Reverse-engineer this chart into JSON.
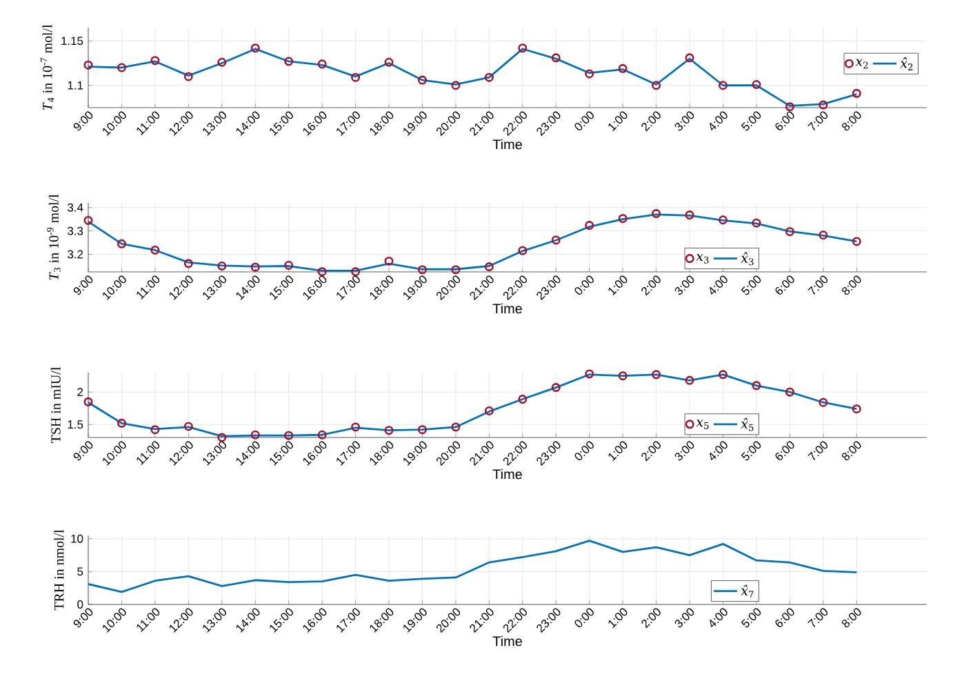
{
  "chart_data": [
    {
      "type": "line",
      "xlabel": "Time",
      "ylabel": "*T*$_{4}$ in 10$^{-7}$ mol/l",
      "categories": [
        "9:00",
        "10:00",
        "11:00",
        "12:00",
        "13:00",
        "14:00",
        "15:00",
        "16:00",
        "17:00",
        "18:00",
        "19:00",
        "20:00",
        "21:00",
        "22:00",
        "23:00",
        "0:00",
        "1:00",
        "2:00",
        "3:00",
        "4:00",
        "5:00",
        "6:00",
        "7:00",
        "8:00"
      ],
      "ylim": [
        1.075,
        1.165
      ],
      "yticks": [
        1.1,
        1.15
      ],
      "grid": true,
      "legend": "right",
      "series": [
        {
          "name": "*x*$_{2}$",
          "type": "scatter",
          "marker": "circle",
          "color": "#a2142f",
          "values": [
            1.123,
            1.12,
            1.128,
            1.11,
            1.126,
            1.142,
            1.127,
            1.124,
            1.109,
            1.126,
            1.106,
            1.1,
            1.109,
            1.142,
            1.131,
            1.113,
            1.119,
            1.1,
            1.131,
            1.1,
            1.101,
            1.076,
            1.078,
            1.091
          ]
        },
        {
          "name": "*x̂*$_{2}$",
          "line_style": "solid",
          "color": "#0072bd",
          "values": [
            1.121,
            1.12,
            1.127,
            1.111,
            1.125,
            1.141,
            1.127,
            1.123,
            1.11,
            1.125,
            1.106,
            1.101,
            1.109,
            1.141,
            1.13,
            1.114,
            1.118,
            1.101,
            1.13,
            1.1,
            1.1,
            1.077,
            1.079,
            1.09
          ]
        }
      ]
    },
    {
      "type": "line",
      "xlabel": "Time",
      "ylabel": "*T*$_{3}$ in 10$^{-9}$ mol/l",
      "categories": [
        "9:00",
        "10:00",
        "11:00",
        "12:00",
        "13:00",
        "14:00",
        "15:00",
        "16:00",
        "17:00",
        "18:00",
        "19:00",
        "20:00",
        "21:00",
        "22:00",
        "23:00",
        "0:00",
        "1:00",
        "2:00",
        "3:00",
        "4:00",
        "5:00",
        "6:00",
        "7:00",
        "8:00"
      ],
      "ylim": [
        3.125,
        3.42
      ],
      "yticks": [
        3.2,
        3.3,
        3.4
      ],
      "grid": true,
      "legend": "bottom right",
      "series": [
        {
          "name": "*x*$_{3}$",
          "type": "scatter",
          "marker": "circle",
          "color": "#a2142f",
          "values": [
            3.345,
            3.245,
            3.218,
            3.161,
            3.15,
            3.145,
            3.153,
            3.126,
            3.126,
            3.171,
            3.134,
            3.134,
            3.147,
            3.216,
            3.261,
            3.324,
            3.353,
            3.374,
            3.368,
            3.347,
            3.334,
            3.297,
            3.282,
            3.255
          ]
        },
        {
          "name": "*x̂*$_{3}$",
          "line_style": "solid",
          "color": "#0072bd",
          "values": [
            3.34,
            3.245,
            3.218,
            3.165,
            3.152,
            3.148,
            3.15,
            3.13,
            3.13,
            3.16,
            3.136,
            3.136,
            3.15,
            3.214,
            3.26,
            3.318,
            3.35,
            3.37,
            3.366,
            3.345,
            3.332,
            3.298,
            3.28,
            3.255
          ]
        }
      ]
    },
    {
      "type": "line",
      "xlabel": "Time",
      "ylabel": "TSH in mIU/l",
      "categories": [
        "9:00",
        "10:00",
        "11:00",
        "12:00",
        "13:00",
        "14:00",
        "15:00",
        "16:00",
        "17:00",
        "18:00",
        "19:00",
        "20:00",
        "21:00",
        "22:00",
        "23:00",
        "0:00",
        "1:00",
        "2:00",
        "3:00",
        "4:00",
        "5:00",
        "6:00",
        "7:00",
        "8:00"
      ],
      "ylim": [
        1.3,
        2.3
      ],
      "yticks": [
        1.5,
        2
      ],
      "grid": true,
      "legend": "bottom right",
      "series": [
        {
          "name": "*x*$_{5}$",
          "type": "scatter",
          "marker": "circle",
          "color": "#a2142f",
          "values": [
            1.85,
            1.52,
            1.42,
            1.47,
            1.3,
            1.34,
            1.33,
            1.34,
            1.46,
            1.41,
            1.42,
            1.46,
            1.71,
            1.89,
            2.07,
            2.28,
            2.25,
            2.27,
            2.18,
            2.27,
            2.1,
            2.0,
            1.84,
            1.74
          ]
        },
        {
          "name": "*x̂*$_{5}$",
          "line_style": "solid",
          "color": "#0072bd",
          "values": [
            1.84,
            1.52,
            1.43,
            1.46,
            1.32,
            1.33,
            1.33,
            1.34,
            1.45,
            1.41,
            1.42,
            1.46,
            1.7,
            1.89,
            2.07,
            2.27,
            2.25,
            2.27,
            2.18,
            2.27,
            2.1,
            2.0,
            1.84,
            1.74
          ]
        }
      ]
    },
    {
      "type": "line",
      "xlabel": "Time",
      "ylabel": "TRH in nmol/l",
      "categories": [
        "9:00",
        "10:00",
        "11:00",
        "12:00",
        "13:00",
        "14:00",
        "15:00",
        "16:00",
        "17:00",
        "18:00",
        "19:00",
        "20:00",
        "21:00",
        "22:00",
        "23:00",
        "0:00",
        "1:00",
        "2:00",
        "3:00",
        "4:00",
        "5:00",
        "6:00",
        "7:00",
        "8:00"
      ],
      "ylim": [
        0,
        10.5
      ],
      "yticks": [
        0,
        5,
        10
      ],
      "grid": true,
      "legend": "bottom right",
      "series": [
        {
          "name": "*x̂*$_{7}$",
          "line_style": "solid",
          "color": "#0072bd",
          "values": [
            3.1,
            1.9,
            3.6,
            4.3,
            2.8,
            3.7,
            3.4,
            3.5,
            4.5,
            3.6,
            3.9,
            4.1,
            6.4,
            7.2,
            8.1,
            9.7,
            8.0,
            8.7,
            7.5,
            9.2,
            6.7,
            6.4,
            5.1,
            4.9
          ]
        }
      ]
    }
  ]
}
